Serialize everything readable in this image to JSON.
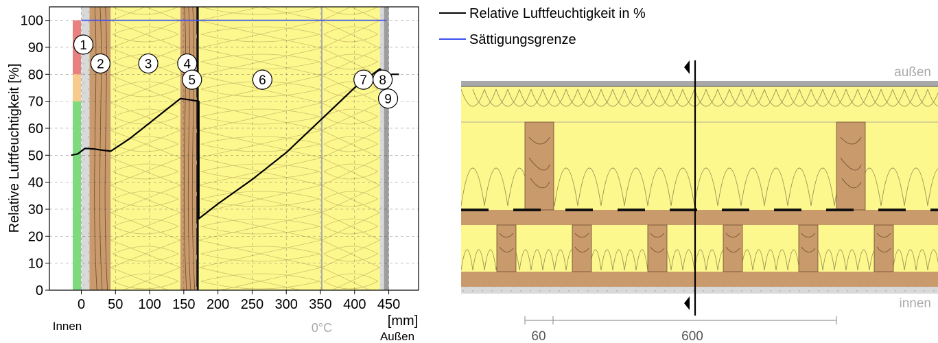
{
  "chart_data": {
    "type": "line",
    "ylabel": "Relative Luftfeuchtigkeit [%]",
    "xunit": "[mm]",
    "ylim": [
      0,
      105
    ],
    "xlim": [
      -20,
      475
    ],
    "y_ticks": [
      0,
      10,
      20,
      30,
      40,
      50,
      60,
      70,
      80,
      90,
      100
    ],
    "x_ticks": [
      0,
      50,
      100,
      150,
      200,
      250,
      300,
      350,
      400,
      450
    ],
    "x_side_labels": {
      "left": "Innen",
      "right": "Außen"
    },
    "dew_point": {
      "x": 352,
      "label": "0°C"
    },
    "comfort_bands": [
      {
        "from": 0,
        "to": 70,
        "color": "#7ddb7d"
      },
      {
        "from": 70,
        "to": 80,
        "color": "#f7cb8c"
      },
      {
        "from": 80,
        "to": 100,
        "color": "#ea7f7f"
      }
    ],
    "series": [
      {
        "name": "Relative Luftfeuchtigkeit in %",
        "color": "#000000",
        "x": [
          -15,
          -5,
          0,
          5,
          10,
          20,
          30,
          40,
          43,
          70,
          100,
          130,
          145,
          160,
          172,
          172,
          200,
          250,
          300,
          350,
          400,
          437,
          446,
          455,
          465
        ],
        "y": [
          50,
          50.5,
          51.5,
          52.5,
          52.5,
          52.3,
          51.9,
          51.6,
          51.5,
          56,
          62,
          68,
          71,
          70.5,
          70,
          26.5,
          32,
          41,
          51,
          63,
          75,
          82,
          79.5,
          80,
          80
        ]
      },
      {
        "name": "Sättigungsgrenze",
        "color": "#3b4ff0",
        "x": [
          0,
          446
        ],
        "y": [
          100,
          100
        ]
      }
    ],
    "layers": [
      {
        "id": "1",
        "x_from": 0,
        "x_to": 12,
        "kind": "board"
      },
      {
        "id": "2",
        "x_from": 12,
        "x_to": 43,
        "kind": "wood"
      },
      {
        "id": "3",
        "x_from": 43,
        "x_to": 145,
        "kind": "insulation"
      },
      {
        "id": "4",
        "x_from": 145,
        "x_to": 169,
        "kind": "wood"
      },
      {
        "id": "5",
        "x_from": 169,
        "x_to": 172,
        "kind": "membrane"
      },
      {
        "id": "6",
        "x_from": 172,
        "x_to": 352,
        "kind": "insulation"
      },
      {
        "id": "7",
        "x_from": 352,
        "x_to": 437,
        "kind": "insulation"
      },
      {
        "id": "8",
        "x_from": 437,
        "x_to": 443,
        "kind": "board"
      },
      {
        "id": "9",
        "x_from": 443,
        "x_to": 450,
        "kind": "cladding"
      }
    ],
    "layer_markers": [
      {
        "label": "1",
        "x": 3,
        "y": 91
      },
      {
        "label": "2",
        "x": 28,
        "y": 84
      },
      {
        "label": "3",
        "x": 98,
        "y": 84
      },
      {
        "label": "4",
        "x": 155,
        "y": 84
      },
      {
        "label": "5",
        "x": 162,
        "y": 78
      },
      {
        "label": "6",
        "x": 265,
        "y": 78
      },
      {
        "label": "7",
        "x": 413,
        "y": 78
      },
      {
        "label": "8",
        "x": 441,
        "y": 78
      },
      {
        "label": "9",
        "x": 449,
        "y": 71
      }
    ]
  },
  "section": {
    "outside_label": "außen",
    "inside_label": "innen",
    "dim_small": "60",
    "dim_large": "600"
  }
}
